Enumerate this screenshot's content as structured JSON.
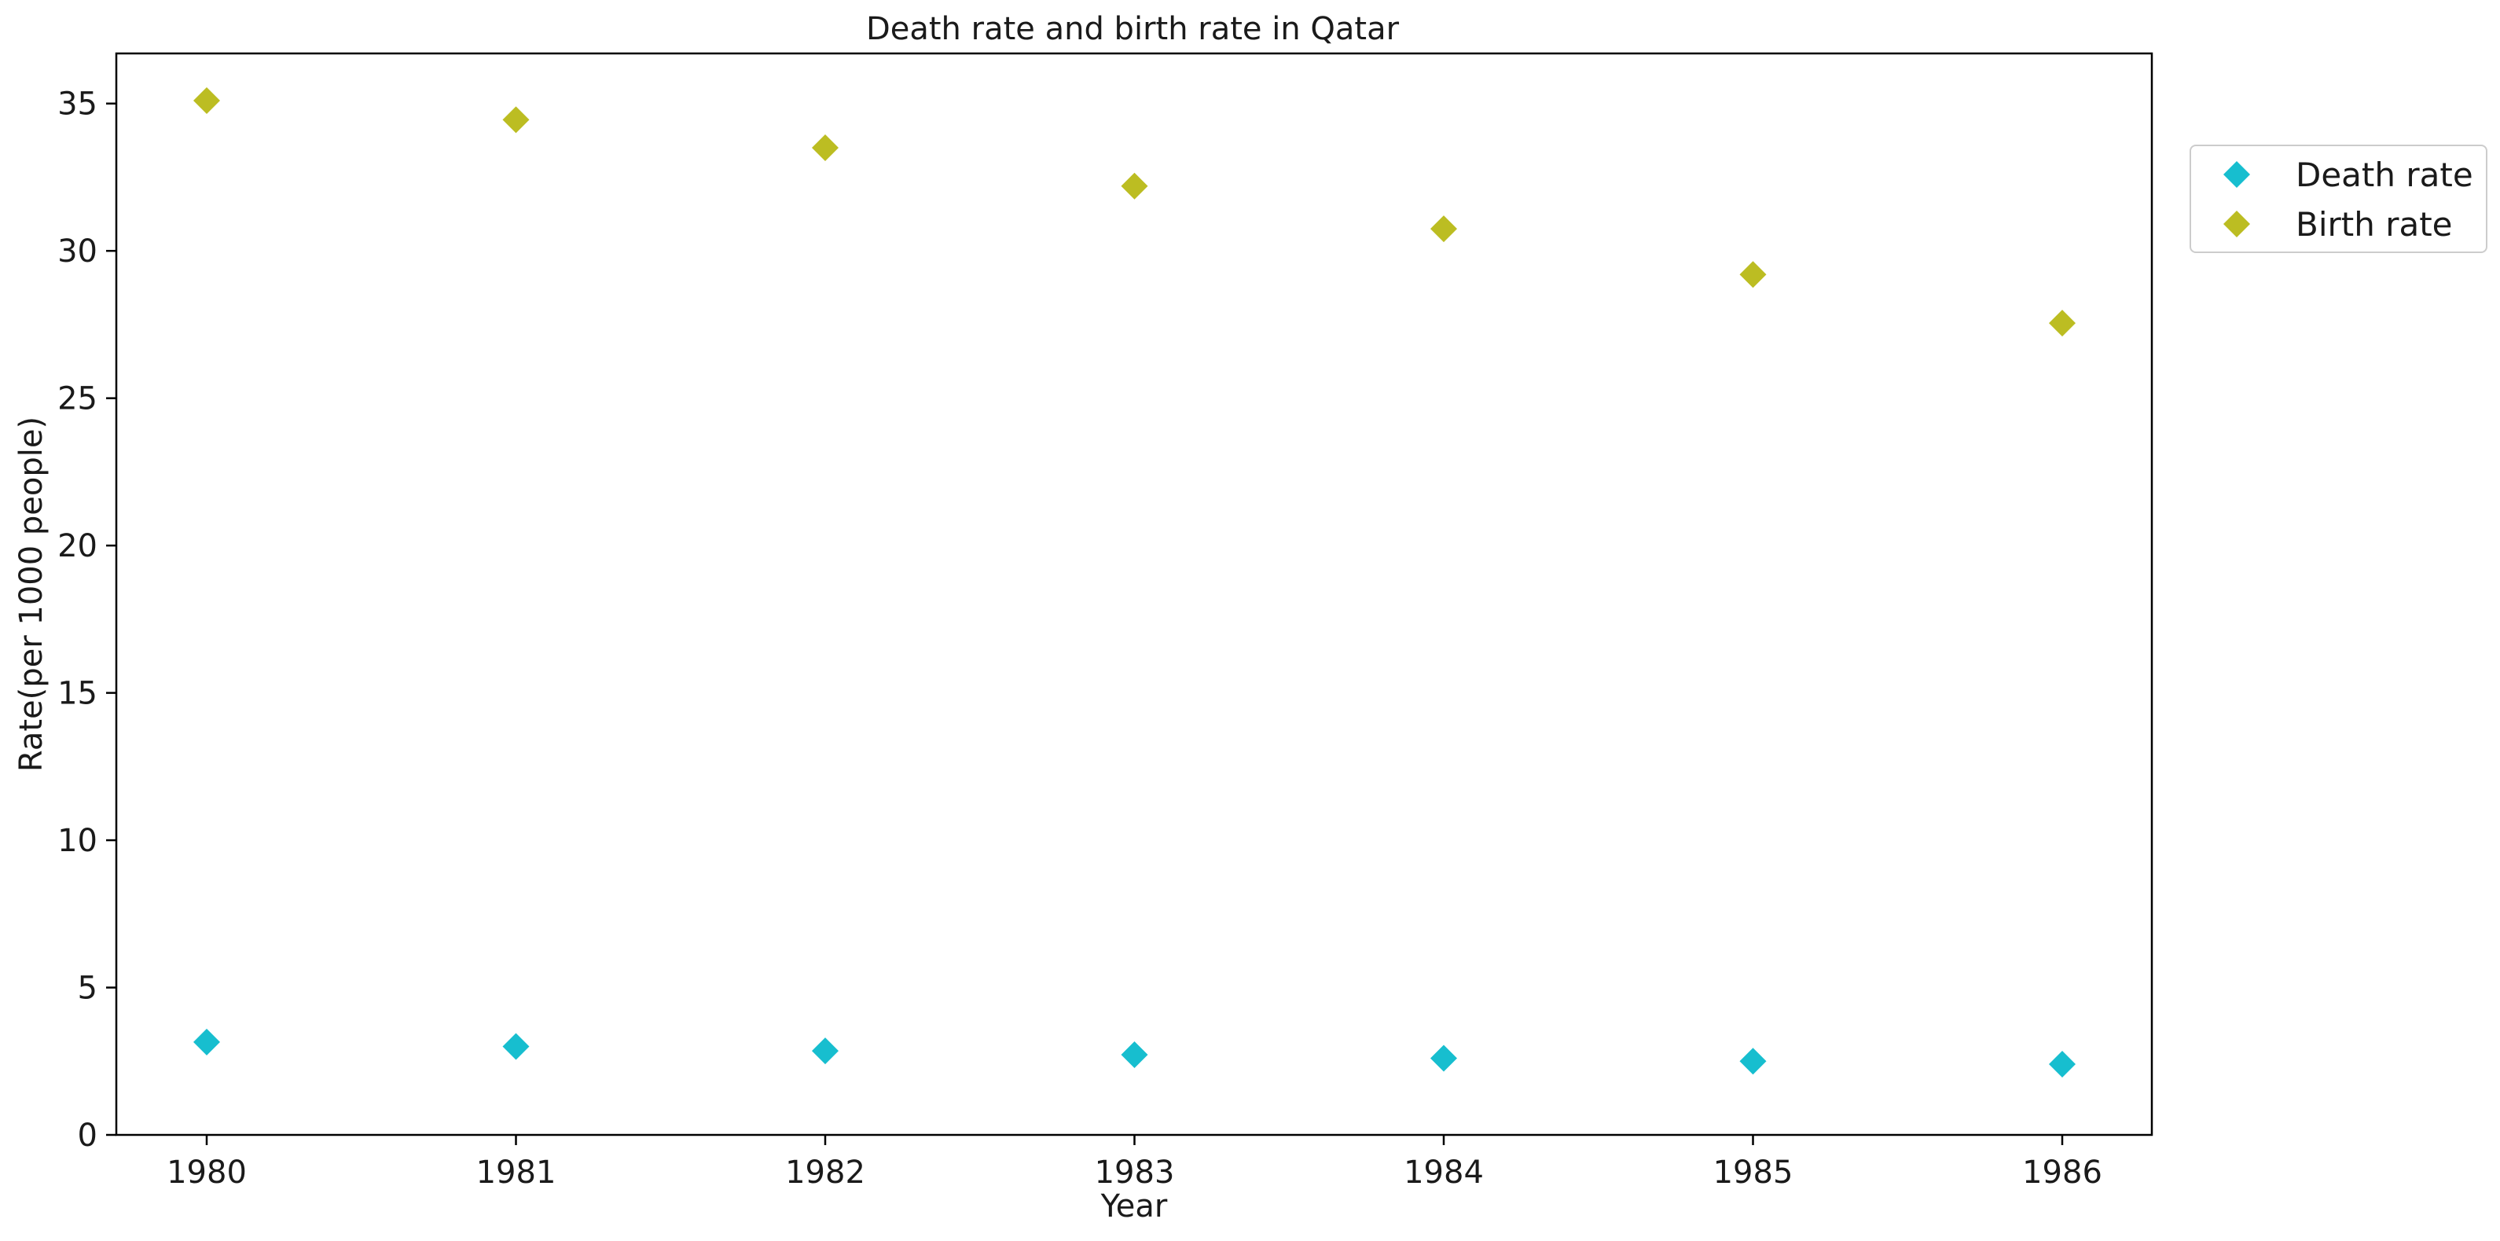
{
  "chart_data": {
    "type": "scatter",
    "title": "Death rate and birth rate in Qatar",
    "xlabel": "Year",
    "ylabel": "Rate(per 1000 people)",
    "categories": [
      "1980",
      "1981",
      "1982",
      "1983",
      "1984",
      "1985",
      "1986"
    ],
    "series": [
      {
        "name": "Death rate",
        "color": "#17becf",
        "marker": "diamond",
        "values": [
          3.15,
          3.0,
          2.85,
          2.72,
          2.6,
          2.5,
          2.4
        ]
      },
      {
        "name": "Birth rate",
        "color": "#bcbd22",
        "marker": "diamond",
        "values": [
          35.1,
          34.45,
          33.5,
          32.2,
          30.75,
          29.2,
          27.55
        ]
      }
    ],
    "ylim": [
      0,
      36.7
    ],
    "yticks": [
      0,
      5,
      10,
      15,
      20,
      25,
      30,
      35
    ],
    "grid": false,
    "legend_position": "outside-top-right"
  }
}
